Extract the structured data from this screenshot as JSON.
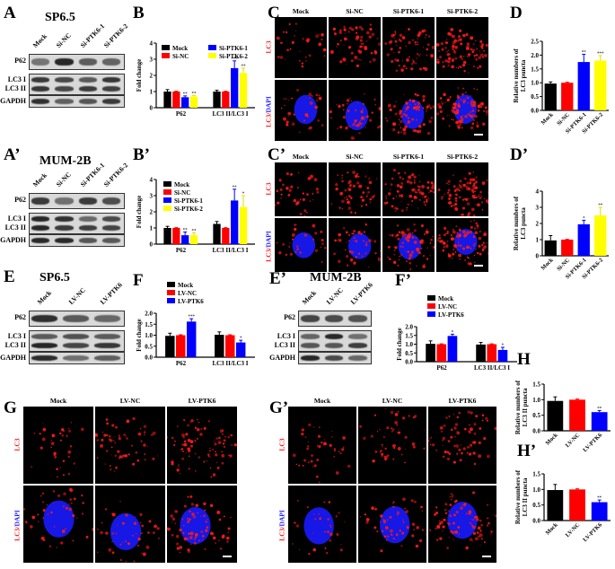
{
  "colors": {
    "mock": "#000000",
    "nc": "#ff0000",
    "ptk1": "#0000ff",
    "ptk2": "#ffff00",
    "dapi": "#1a1aff",
    "puncta": "#ff1a1a"
  },
  "panels": {
    "A": {
      "label": "A",
      "title": "SP6.5",
      "lanes": [
        "Mock",
        "Si-NC",
        "Si-PTK6-1",
        "Si-PTK6-2"
      ],
      "rows": [
        "P62",
        "LC3 I",
        "LC3 II",
        "GAPDH"
      ]
    },
    "A2": {
      "label": "A’",
      "title": "MUM-2B",
      "lanes": [
        "Mock",
        "Si-NC",
        "Si-PTK6-1",
        "Si-PTK6-2"
      ],
      "rows": [
        "P62",
        "LC3 I",
        "LC3 II",
        "GAPDH"
      ]
    },
    "E": {
      "label": "E",
      "title": "SP6.5",
      "lanes": [
        "Mock",
        "LV-NC",
        "LV-PTK6"
      ],
      "rows": [
        "P62",
        "LC3 I",
        "LC3 II",
        "GAPDH"
      ]
    },
    "E2": {
      "label": "E’",
      "title": "MUM-2B",
      "lanes": [
        "Mock",
        "LV-NC",
        "LV-PTK6"
      ],
      "rows": [
        "P62",
        "LC3 I",
        "LC3 II",
        "GAPDH"
      ]
    },
    "C": {
      "label": "C",
      "cols": [
        "Mock",
        "Si-NC",
        "Si-PTK6-1",
        "Si-PTK6-2"
      ],
      "row1": "LC3",
      "row2a": "LC3/",
      "row2b": "DAPI"
    },
    "C2": {
      "label": "C’",
      "cols": [
        "Mock",
        "Si-NC",
        "Si-PTK6-1",
        "Si-PTK6-2"
      ],
      "row1": "LC3",
      "row2a": "LC3/",
      "row2b": "DAPI"
    },
    "G": {
      "label": "G",
      "cols": [
        "Mock",
        "LV-NC",
        "LV-PTK6"
      ],
      "row1": "LC3",
      "row2a": "LC3/",
      "row2b": "DAPI"
    },
    "G2": {
      "label": "G’",
      "cols": [
        "Mock",
        "LV-NC",
        "LV-PTK6"
      ],
      "row1": "LC3",
      "row2a": "LC3/",
      "row2b": "DAPI"
    },
    "B": {
      "label": "B"
    },
    "B2": {
      "label": "B’"
    },
    "D": {
      "label": "D"
    },
    "D2": {
      "label": "D’"
    },
    "F": {
      "label": "F"
    },
    "F2": {
      "label": "F’"
    },
    "H": {
      "label": "H"
    },
    "H2": {
      "label": "H’"
    }
  },
  "chart_data": [
    {
      "panel": "B",
      "type": "bar",
      "ylabel": "Fold change",
      "ylim": [
        0,
        4
      ],
      "yticks": [
        0,
        1,
        2,
        3,
        4
      ],
      "legend": "top-left",
      "groups": [
        "P62",
        "LC3 II/LC3 I"
      ],
      "series": [
        {
          "name": "Mock",
          "values": [
            1.0,
            1.0
          ],
          "errors": [
            0.12,
            0.08
          ],
          "sig": [
            "",
            ""
          ]
        },
        {
          "name": "Si-NC",
          "values": [
            1.0,
            1.0
          ],
          "errors": [
            0.02,
            0.02
          ],
          "sig": [
            "",
            ""
          ]
        },
        {
          "name": "Si-PTK6-1",
          "values": [
            0.65,
            2.45
          ],
          "errors": [
            0.08,
            0.45
          ],
          "sig": [
            "**",
            "***"
          ]
        },
        {
          "name": "Si-PTK6-2",
          "values": [
            0.7,
            2.15
          ],
          "errors": [
            0.06,
            0.3
          ],
          "sig": [
            "**",
            "**"
          ]
        }
      ]
    },
    {
      "panel": "B2",
      "type": "bar",
      "ylabel": "Fold change",
      "ylim": [
        0,
        4
      ],
      "yticks": [
        0,
        1,
        2,
        3,
        4
      ],
      "legend": "top-left",
      "groups": [
        "P62",
        "LC3 II/LC3 I"
      ],
      "series": [
        {
          "name": "Mock",
          "values": [
            1.0,
            1.25
          ],
          "errors": [
            0.1,
            0.15
          ],
          "sig": [
            "",
            ""
          ]
        },
        {
          "name": "Si-NC",
          "values": [
            1.0,
            1.0
          ],
          "errors": [
            0.02,
            0.02
          ],
          "sig": [
            "",
            ""
          ]
        },
        {
          "name": "Si-PTK6-1",
          "values": [
            0.55,
            2.7
          ],
          "errors": [
            0.2,
            0.7
          ],
          "sig": [
            "**",
            "**"
          ]
        },
        {
          "name": "Si-PTK6-2",
          "values": [
            0.55,
            2.3
          ],
          "errors": [
            0.15,
            0.7
          ],
          "sig": [
            "**",
            "*"
          ]
        }
      ]
    },
    {
      "panel": "D",
      "type": "bar",
      "ylabel": "Relative numbers of LC3 puncta",
      "ylim": [
        0,
        2.5
      ],
      "yticks": [
        "0.0",
        "0.5",
        "1.0",
        "1.5",
        "2.0",
        "2.5"
      ],
      "categories": [
        "Mock",
        "Si-NC",
        "Si-PTK6-1",
        "Si-PTK6-2"
      ],
      "values": [
        0.97,
        1.0,
        1.75,
        1.8
      ],
      "errors": [
        0.06,
        0.02,
        0.28,
        0.18
      ],
      "sig": [
        "",
        "",
        "**",
        "***"
      ]
    },
    {
      "panel": "D2",
      "type": "bar",
      "ylabel": "Relative numbers of LC3 puncta",
      "ylim": [
        0,
        4
      ],
      "yticks": [
        0,
        1,
        2,
        3,
        4
      ],
      "categories": [
        "Mock",
        "Si-NC",
        "Si-PTK6-1",
        "Si-PTK6-2"
      ],
      "values": [
        0.95,
        1.0,
        1.95,
        2.5
      ],
      "errors": [
        0.3,
        0.02,
        0.25,
        0.5
      ],
      "sig": [
        "",
        "",
        "*",
        "**"
      ]
    },
    {
      "panel": "F",
      "type": "bar",
      "ylabel": "Fold change",
      "ylim": [
        0,
        2
      ],
      "yticks": [
        "0.0",
        "0.5",
        "1.0",
        "1.5",
        "2.0"
      ],
      "legend": "top",
      "groups": [
        "P62",
        "LC3 II/LC3 I"
      ],
      "series": [
        {
          "name": "Mock",
          "values": [
            0.97,
            1.02
          ],
          "errors": [
            0.12,
            0.13
          ],
          "sig": [
            "",
            ""
          ]
        },
        {
          "name": "LV-NC",
          "values": [
            1.0,
            1.0
          ],
          "errors": [
            0.02,
            0.02
          ],
          "sig": [
            "",
            ""
          ]
        },
        {
          "name": "LV-PTK6",
          "values": [
            1.62,
            0.67
          ],
          "errors": [
            0.13,
            0.1
          ],
          "sig": [
            "***",
            "*"
          ]
        }
      ]
    },
    {
      "panel": "F2",
      "type": "bar",
      "ylabel": "Fold change",
      "ylim": [
        0,
        2
      ],
      "yticks": [
        "0.0",
        "0.5",
        "1.0",
        "1.5",
        "2.0"
      ],
      "legend": "top",
      "groups": [
        "P62",
        "LC3 II/LC3 I"
      ],
      "series": [
        {
          "name": "Mock",
          "values": [
            1.02,
            0.98
          ],
          "errors": [
            0.17,
            0.12
          ],
          "sig": [
            "",
            ""
          ]
        },
        {
          "name": "LV-NC",
          "values": [
            1.0,
            1.0
          ],
          "errors": [
            0.02,
            0.02
          ],
          "sig": [
            "",
            ""
          ]
        },
        {
          "name": "LV-PTK6",
          "values": [
            1.47,
            0.67
          ],
          "errors": [
            0.1,
            0.15
          ],
          "sig": [
            "*",
            "*"
          ]
        }
      ]
    },
    {
      "panel": "H",
      "type": "bar",
      "ylabel": "Relative numbers of LC3 II puncta",
      "ylim": [
        0,
        1.5
      ],
      "yticks": [
        "0.0",
        "0.5",
        "1.0",
        "1.5"
      ],
      "categories": [
        "Mock",
        "LV-NC",
        "LV-PTK6"
      ],
      "values": [
        0.96,
        1.0,
        0.6
      ],
      "errors": [
        0.13,
        0.02,
        0.05
      ],
      "sig": [
        "",
        "",
        "**"
      ]
    },
    {
      "panel": "H2",
      "type": "bar",
      "ylabel": "Relative numbers of LC3 II puncta",
      "ylim": [
        0,
        1.5
      ],
      "yticks": [
        "0.0",
        "0.5",
        "1.0",
        "1.5"
      ],
      "categories": [
        "Mock",
        "LV-NC",
        "LV-PTK6"
      ],
      "values": [
        0.98,
        1.0,
        0.59
      ],
      "errors": [
        0.18,
        0.02,
        0.07
      ],
      "sig": [
        "",
        "",
        "**"
      ]
    }
  ]
}
